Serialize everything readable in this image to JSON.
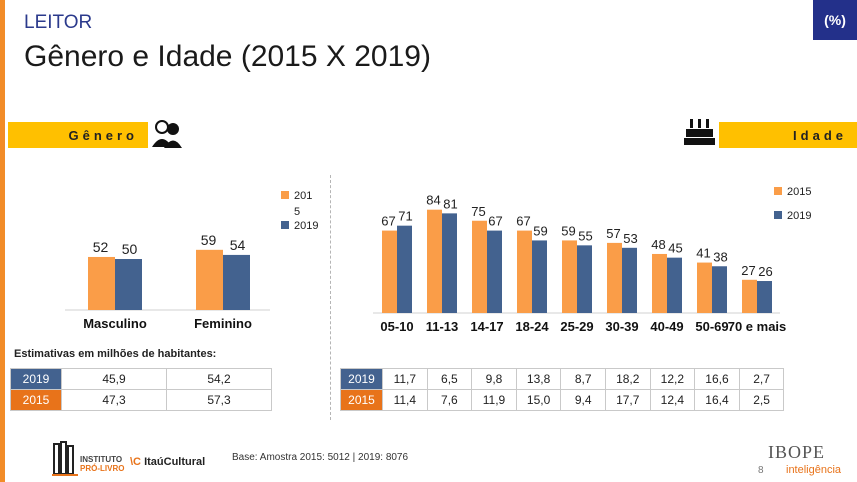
{
  "header": {
    "section": "LEITOR",
    "title": "Gênero e Idade (2015 X 2019)",
    "unit_badge": "(%)"
  },
  "bands": {
    "gender": "Gênero",
    "age": "Idade"
  },
  "icons": {
    "gender": "people-icon",
    "age": "birthday-cake-icon"
  },
  "colors": {
    "s2015": "#fa9d48",
    "s2019": "#43628f",
    "band": "#ffc000",
    "badge": "#23308a"
  },
  "chart_data": [
    {
      "type": "bar",
      "categories": [
        "Masculino",
        "Feminino"
      ],
      "series": [
        {
          "name": "201\n5",
          "values": [
            52,
            59
          ]
        },
        {
          "name": "2019",
          "values": [
            50,
            54
          ]
        }
      ],
      "legend_position": "top-right",
      "grid": false
    },
    {
      "type": "bar",
      "categories": [
        "05-10",
        "11-13",
        "14-17",
        "18-24",
        "25-29",
        "30-39",
        "40-49",
        "50-69",
        "70 e mais"
      ],
      "series": [
        {
          "name": "2015",
          "values": [
            67,
            84,
            75,
            67,
            59,
            57,
            48,
            41,
            27
          ]
        },
        {
          "name": "2019",
          "values": [
            71,
            81,
            67,
            59,
            55,
            53,
            45,
            38,
            26
          ]
        }
      ],
      "legend_position": "top-right",
      "grid": false
    }
  ],
  "gender_table": {
    "note": "Estimativas em milhões de habitantes:",
    "rows": [
      {
        "year": "2019",
        "values": [
          "45,9",
          "54,2"
        ]
      },
      {
        "year": "2015",
        "values": [
          "47,3",
          "57,3"
        ]
      }
    ]
  },
  "age_table": {
    "rows": [
      {
        "year": "2019",
        "values": [
          "11,7",
          "6,5",
          "9,8",
          "13,8",
          "8,7",
          "18,2",
          "12,2",
          "16,6",
          "2,7"
        ]
      },
      {
        "year": "2015",
        "values": [
          "11,4",
          "7,6",
          "11,9",
          "15,0",
          "9,4",
          "17,7",
          "12,4",
          "16,4",
          "2,5"
        ]
      }
    ]
  },
  "footer": {
    "base": "Base: Amostra 2015: 5012 | 2019: 8076",
    "logo_line1": "INSTITUTO",
    "logo_line2": "PRÓ-LIVRO",
    "partner_a": "Itaú",
    "partner_b": "Cultural",
    "page": "8",
    "brand": "IBOPE",
    "brand_sub": "inteligência"
  }
}
